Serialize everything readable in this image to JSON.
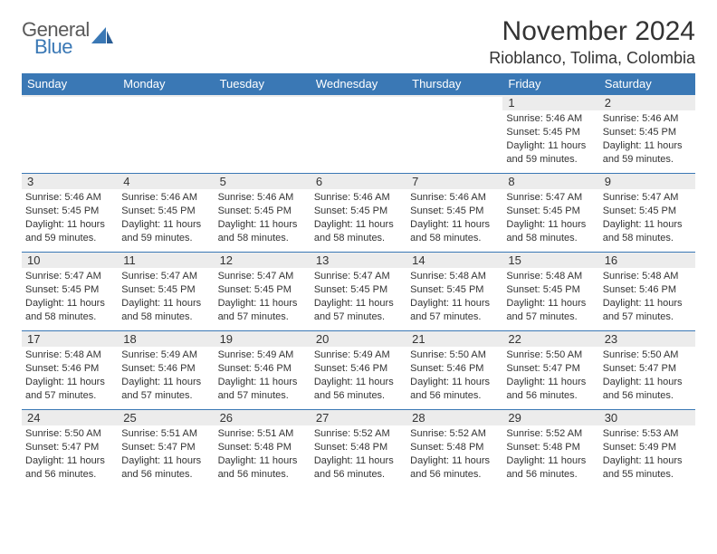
{
  "logo": {
    "line1": "General",
    "line2": "Blue"
  },
  "colors": {
    "header_bg": "#3a78b5",
    "header_text": "#ffffff",
    "daynum_bg": "#ececec",
    "text": "#333333",
    "rule": "#3a78b5",
    "logo_gray": "#5a5a5a",
    "logo_blue": "#3a78b5"
  },
  "month_title": "November 2024",
  "location": "Rioblanco, Tolima, Colombia",
  "days_of_week": [
    "Sunday",
    "Monday",
    "Tuesday",
    "Wednesday",
    "Thursday",
    "Friday",
    "Saturday"
  ],
  "weeks": [
    [
      {
        "n": "",
        "sunrise": "",
        "sunset": "",
        "daylight": ""
      },
      {
        "n": "",
        "sunrise": "",
        "sunset": "",
        "daylight": ""
      },
      {
        "n": "",
        "sunrise": "",
        "sunset": "",
        "daylight": ""
      },
      {
        "n": "",
        "sunrise": "",
        "sunset": "",
        "daylight": ""
      },
      {
        "n": "",
        "sunrise": "",
        "sunset": "",
        "daylight": ""
      },
      {
        "n": "1",
        "sunrise": "Sunrise: 5:46 AM",
        "sunset": "Sunset: 5:45 PM",
        "daylight": "Daylight: 11 hours and 59 minutes."
      },
      {
        "n": "2",
        "sunrise": "Sunrise: 5:46 AM",
        "sunset": "Sunset: 5:45 PM",
        "daylight": "Daylight: 11 hours and 59 minutes."
      }
    ],
    [
      {
        "n": "3",
        "sunrise": "Sunrise: 5:46 AM",
        "sunset": "Sunset: 5:45 PM",
        "daylight": "Daylight: 11 hours and 59 minutes."
      },
      {
        "n": "4",
        "sunrise": "Sunrise: 5:46 AM",
        "sunset": "Sunset: 5:45 PM",
        "daylight": "Daylight: 11 hours and 59 minutes."
      },
      {
        "n": "5",
        "sunrise": "Sunrise: 5:46 AM",
        "sunset": "Sunset: 5:45 PM",
        "daylight": "Daylight: 11 hours and 58 minutes."
      },
      {
        "n": "6",
        "sunrise": "Sunrise: 5:46 AM",
        "sunset": "Sunset: 5:45 PM",
        "daylight": "Daylight: 11 hours and 58 minutes."
      },
      {
        "n": "7",
        "sunrise": "Sunrise: 5:46 AM",
        "sunset": "Sunset: 5:45 PM",
        "daylight": "Daylight: 11 hours and 58 minutes."
      },
      {
        "n": "8",
        "sunrise": "Sunrise: 5:47 AM",
        "sunset": "Sunset: 5:45 PM",
        "daylight": "Daylight: 11 hours and 58 minutes."
      },
      {
        "n": "9",
        "sunrise": "Sunrise: 5:47 AM",
        "sunset": "Sunset: 5:45 PM",
        "daylight": "Daylight: 11 hours and 58 minutes."
      }
    ],
    [
      {
        "n": "10",
        "sunrise": "Sunrise: 5:47 AM",
        "sunset": "Sunset: 5:45 PM",
        "daylight": "Daylight: 11 hours and 58 minutes."
      },
      {
        "n": "11",
        "sunrise": "Sunrise: 5:47 AM",
        "sunset": "Sunset: 5:45 PM",
        "daylight": "Daylight: 11 hours and 58 minutes."
      },
      {
        "n": "12",
        "sunrise": "Sunrise: 5:47 AM",
        "sunset": "Sunset: 5:45 PM",
        "daylight": "Daylight: 11 hours and 57 minutes."
      },
      {
        "n": "13",
        "sunrise": "Sunrise: 5:47 AM",
        "sunset": "Sunset: 5:45 PM",
        "daylight": "Daylight: 11 hours and 57 minutes."
      },
      {
        "n": "14",
        "sunrise": "Sunrise: 5:48 AM",
        "sunset": "Sunset: 5:45 PM",
        "daylight": "Daylight: 11 hours and 57 minutes."
      },
      {
        "n": "15",
        "sunrise": "Sunrise: 5:48 AM",
        "sunset": "Sunset: 5:45 PM",
        "daylight": "Daylight: 11 hours and 57 minutes."
      },
      {
        "n": "16",
        "sunrise": "Sunrise: 5:48 AM",
        "sunset": "Sunset: 5:46 PM",
        "daylight": "Daylight: 11 hours and 57 minutes."
      }
    ],
    [
      {
        "n": "17",
        "sunrise": "Sunrise: 5:48 AM",
        "sunset": "Sunset: 5:46 PM",
        "daylight": "Daylight: 11 hours and 57 minutes."
      },
      {
        "n": "18",
        "sunrise": "Sunrise: 5:49 AM",
        "sunset": "Sunset: 5:46 PM",
        "daylight": "Daylight: 11 hours and 57 minutes."
      },
      {
        "n": "19",
        "sunrise": "Sunrise: 5:49 AM",
        "sunset": "Sunset: 5:46 PM",
        "daylight": "Daylight: 11 hours and 57 minutes."
      },
      {
        "n": "20",
        "sunrise": "Sunrise: 5:49 AM",
        "sunset": "Sunset: 5:46 PM",
        "daylight": "Daylight: 11 hours and 56 minutes."
      },
      {
        "n": "21",
        "sunrise": "Sunrise: 5:50 AM",
        "sunset": "Sunset: 5:46 PM",
        "daylight": "Daylight: 11 hours and 56 minutes."
      },
      {
        "n": "22",
        "sunrise": "Sunrise: 5:50 AM",
        "sunset": "Sunset: 5:47 PM",
        "daylight": "Daylight: 11 hours and 56 minutes."
      },
      {
        "n": "23",
        "sunrise": "Sunrise: 5:50 AM",
        "sunset": "Sunset: 5:47 PM",
        "daylight": "Daylight: 11 hours and 56 minutes."
      }
    ],
    [
      {
        "n": "24",
        "sunrise": "Sunrise: 5:50 AM",
        "sunset": "Sunset: 5:47 PM",
        "daylight": "Daylight: 11 hours and 56 minutes."
      },
      {
        "n": "25",
        "sunrise": "Sunrise: 5:51 AM",
        "sunset": "Sunset: 5:47 PM",
        "daylight": "Daylight: 11 hours and 56 minutes."
      },
      {
        "n": "26",
        "sunrise": "Sunrise: 5:51 AM",
        "sunset": "Sunset: 5:48 PM",
        "daylight": "Daylight: 11 hours and 56 minutes."
      },
      {
        "n": "27",
        "sunrise": "Sunrise: 5:52 AM",
        "sunset": "Sunset: 5:48 PM",
        "daylight": "Daylight: 11 hours and 56 minutes."
      },
      {
        "n": "28",
        "sunrise": "Sunrise: 5:52 AM",
        "sunset": "Sunset: 5:48 PM",
        "daylight": "Daylight: 11 hours and 56 minutes."
      },
      {
        "n": "29",
        "sunrise": "Sunrise: 5:52 AM",
        "sunset": "Sunset: 5:48 PM",
        "daylight": "Daylight: 11 hours and 56 minutes."
      },
      {
        "n": "30",
        "sunrise": "Sunrise: 5:53 AM",
        "sunset": "Sunset: 5:49 PM",
        "daylight": "Daylight: 11 hours and 55 minutes."
      }
    ]
  ]
}
